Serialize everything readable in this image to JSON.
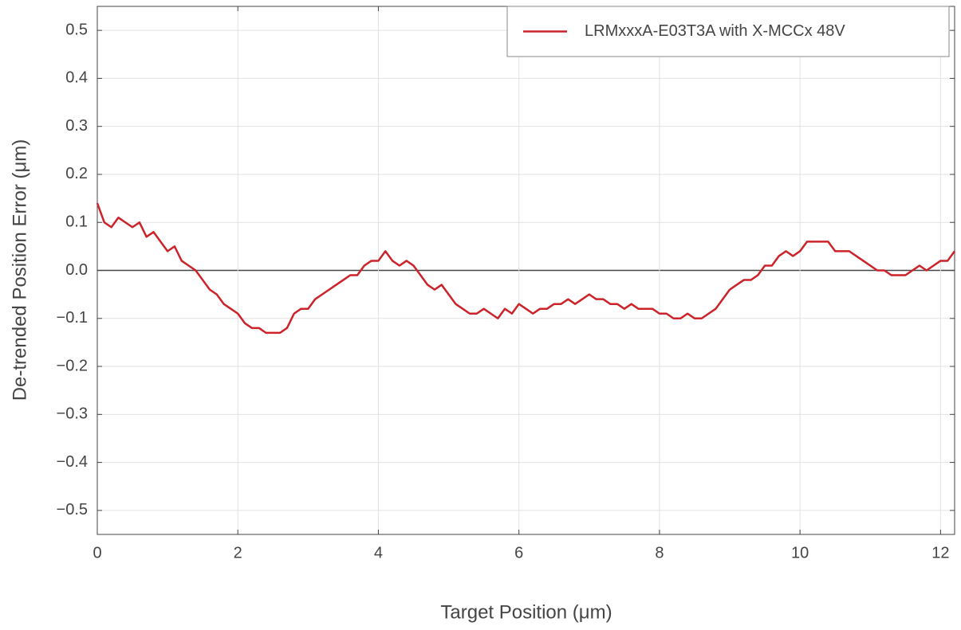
{
  "chart_data": {
    "type": "line",
    "x_label": "Target Position (μm)",
    "y_label": "De-trended Position Error (μm)",
    "x": [
      0,
      0.1,
      0.2,
      0.3,
      0.4,
      0.5,
      0.6,
      0.7,
      0.8,
      0.9,
      1,
      1.1,
      1.2,
      1.3,
      1.4,
      1.5,
      1.6,
      1.7,
      1.8,
      1.9,
      2,
      2.1,
      2.2,
      2.3,
      2.4,
      2.5,
      2.6,
      2.7,
      2.8,
      2.9,
      3,
      3.1,
      3.2,
      3.3,
      3.4,
      3.5,
      3.6,
      3.7,
      3.8,
      3.9,
      4,
      4.1,
      4.2,
      4.3,
      4.4,
      4.5,
      4.6,
      4.7,
      4.8,
      4.9,
      5,
      5.1,
      5.2,
      5.3,
      5.4,
      5.5,
      5.6,
      5.7,
      5.8,
      5.9,
      6,
      6.1,
      6.2,
      6.3,
      6.4,
      6.5,
      6.6,
      6.7,
      6.8,
      6.9,
      7,
      7.1,
      7.2,
      7.3,
      7.4,
      7.5,
      7.6,
      7.7,
      7.8,
      7.9,
      8,
      8.1,
      8.2,
      8.3,
      8.4,
      8.5,
      8.6,
      8.7,
      8.8,
      8.9,
      9,
      9.1,
      9.2,
      9.3,
      9.4,
      9.5,
      9.6,
      9.7,
      9.8,
      9.9,
      10,
      10.1,
      10.2,
      10.3,
      10.4,
      10.5,
      10.6,
      10.7,
      10.8,
      10.9,
      11,
      11.1,
      11.2,
      11.3,
      11.4,
      11.5,
      11.6,
      11.7,
      11.8,
      11.9,
      12,
      12.1,
      12.2
    ],
    "series": [
      {
        "name": "LRMxxxA-E03T3A with X-MCCx 48V",
        "color": "#cc2229",
        "values": [
          0.14,
          0.1,
          0.09,
          0.11,
          0.1,
          0.09,
          0.1,
          0.07,
          0.08,
          0.06,
          0.04,
          0.05,
          0.02,
          0.01,
          0.0,
          -0.02,
          -0.04,
          -0.05,
          -0.07,
          -0.08,
          -0.09,
          -0.11,
          -0.12,
          -0.12,
          -0.13,
          -0.13,
          -0.13,
          -0.12,
          -0.09,
          -0.08,
          -0.08,
          -0.06,
          -0.05,
          -0.04,
          -0.03,
          -0.02,
          -0.01,
          -0.01,
          0.01,
          0.02,
          0.02,
          0.04,
          0.02,
          0.01,
          0.02,
          0.01,
          -0.01,
          -0.03,
          -0.04,
          -0.03,
          -0.05,
          -0.07,
          -0.08,
          -0.09,
          -0.09,
          -0.08,
          -0.09,
          -0.1,
          -0.08,
          -0.09,
          -0.07,
          -0.08,
          -0.09,
          -0.08,
          -0.08,
          -0.07,
          -0.07,
          -0.06,
          -0.07,
          -0.06,
          -0.05,
          -0.06,
          -0.06,
          -0.07,
          -0.07,
          -0.08,
          -0.07,
          -0.08,
          -0.08,
          -0.08,
          -0.09,
          -0.09,
          -0.1,
          -0.1,
          -0.09,
          -0.1,
          -0.1,
          -0.09,
          -0.08,
          -0.06,
          -0.04,
          -0.03,
          -0.02,
          -0.02,
          -0.01,
          0.01,
          0.01,
          0.03,
          0.04,
          0.03,
          0.04,
          0.06,
          0.06,
          0.06,
          0.06,
          0.04,
          0.04,
          0.04,
          0.03,
          0.02,
          0.01,
          0.0,
          0.0,
          -0.01,
          -0.01,
          -0.01,
          0.0,
          0.01,
          0.0,
          0.01,
          0.02,
          0.02,
          0.04
        ]
      }
    ],
    "xlim": [
      0,
      12.2
    ],
    "ylim": [
      -0.55,
      0.55
    ],
    "xticks": [
      0,
      2,
      4,
      6,
      8,
      10,
      12
    ],
    "yticks": [
      {
        "value": -0.5,
        "label": "−0.5"
      },
      {
        "value": -0.4,
        "label": "−0.4"
      },
      {
        "value": -0.3,
        "label": "−0.3"
      },
      {
        "value": -0.2,
        "label": "−0.2"
      },
      {
        "value": -0.1,
        "label": "−0.1"
      },
      {
        "value": 0,
        "label": "0.0"
      },
      0.1,
      0.2,
      0.3,
      0.4,
      0.5
    ],
    "grid": true,
    "legend": "upper right"
  }
}
